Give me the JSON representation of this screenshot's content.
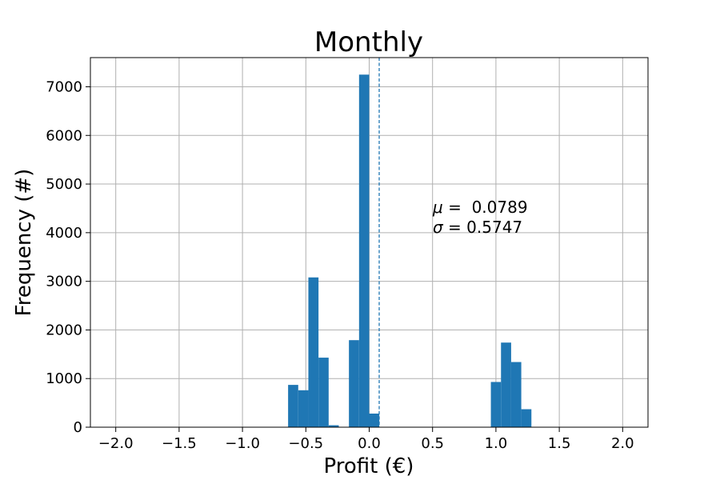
{
  "chart_data": {
    "type": "bar",
    "title": "Monthly",
    "xlabel": "Profit (€)",
    "ylabel": "Frequency (#)",
    "xlim": [
      -2.2,
      2.2
    ],
    "ylim": [
      0,
      7600
    ],
    "bar_color": "#1f77b4",
    "grid": true,
    "x_ticks": [
      -2.0,
      -1.5,
      -1.0,
      -0.5,
      0.0,
      0.5,
      1.0,
      1.5,
      2.0
    ],
    "x_tick_labels": [
      "−2.0",
      "−1.5",
      "−1.0",
      "−0.5",
      "0.0",
      "0.5",
      "1.0",
      "1.5",
      "2.0"
    ],
    "y_ticks": [
      0,
      1000,
      2000,
      3000,
      4000,
      5000,
      6000,
      7000
    ],
    "y_tick_labels": [
      "0",
      "1000",
      "2000",
      "3000",
      "4000",
      "5000",
      "6000",
      "7000"
    ],
    "bin_width": 0.08,
    "bins": [
      {
        "x": -0.64,
        "value": 870
      },
      {
        "x": -0.56,
        "value": 760
      },
      {
        "x": -0.48,
        "value": 3080
      },
      {
        "x": -0.4,
        "value": 1430
      },
      {
        "x": -0.32,
        "value": 40
      },
      {
        "x": -0.16,
        "value": 1790
      },
      {
        "x": -0.08,
        "value": 7250
      },
      {
        "x": 0.0,
        "value": 280
      },
      {
        "x": 0.96,
        "value": 930
      },
      {
        "x": 1.04,
        "value": 1740
      },
      {
        "x": 1.12,
        "value": 1340
      },
      {
        "x": 1.2,
        "value": 370
      }
    ],
    "mean_line": {
      "x": 0.0789,
      "color": "#1f77b4",
      "style": "dashed"
    },
    "annotation": {
      "mu_symbol": "μ",
      "mu_text": " =  0.0789",
      "sigma_symbol": "σ",
      "sigma_text": " = 0.5747"
    }
  }
}
